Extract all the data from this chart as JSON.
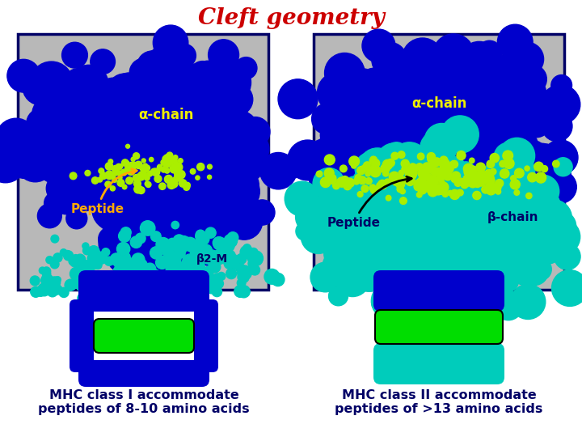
{
  "title": "Cleft geometry",
  "title_color": "#cc0000",
  "title_fontsize": 20,
  "bg_color": "#ffffff",
  "panel_bg": "#b8b8b8",
  "blue": "#0000cc",
  "cyan": "#00ccbb",
  "ygreen": "#aaee00",
  "green": "#00dd00",
  "orange": "#ffaa00",
  "navy": "#000066",
  "black": "#000000",
  "white": "#ffffff",
  "label_color": "#000066",
  "alpha_label": "#eeee00",
  "peptide_left_label": "#ffaa00",
  "peptide_right_label": "#000066",
  "beta_label": "#000066",
  "beta2m_label": "#000066",
  "label1": "MHC class I accommodate\npeptides of 8-10 amino acids",
  "label2": "MHC class II accommodate\npeptides of >13 amino acids",
  "label_fs": 11.5
}
